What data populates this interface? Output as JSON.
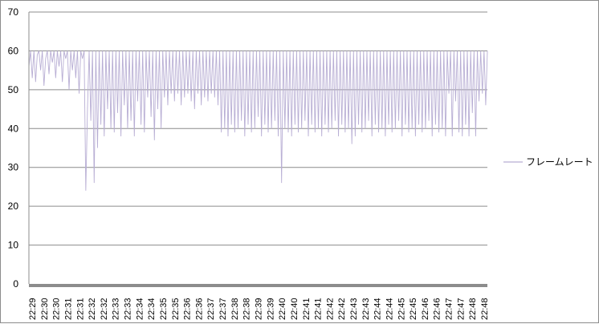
{
  "chart_data": {
    "type": "line",
    "title": "",
    "xlabel": "",
    "ylabel": "",
    "ylim": [
      0,
      70
    ],
    "yticks": [
      0,
      10,
      20,
      30,
      40,
      50,
      60,
      70
    ],
    "grid": "horizontal",
    "legend_position": "right",
    "series_color": "#b8aed4",
    "x_tick_labels": [
      "22:29",
      "22:30",
      "22:30",
      "22:31",
      "22:31",
      "22:32",
      "22:32",
      "22:33",
      "22:33",
      "22:34",
      "22:34",
      "22:35",
      "22:35",
      "22:36",
      "22:36",
      "22:37",
      "22:37",
      "22:38",
      "22:38",
      "22:39",
      "22:39",
      "22:40",
      "22:40",
      "22:41",
      "22:41",
      "22:42",
      "22:42",
      "22:43",
      "22:43",
      "22:44",
      "22:44",
      "22:45",
      "22:45",
      "22:46",
      "22:46",
      "22:47",
      "22:47",
      "22:48",
      "22:48"
    ],
    "series": [
      {
        "name": "フレームレート",
        "values": [
          56,
          60,
          53,
          60,
          52,
          59,
          60,
          55,
          60,
          51,
          58,
          60,
          54,
          60,
          57,
          60,
          53,
          60,
          56,
          60,
          52,
          60,
          58,
          60,
          50,
          60,
          55,
          60,
          53,
          60,
          49,
          60,
          58,
          60,
          24,
          45,
          60,
          42,
          60,
          26,
          60,
          35,
          60,
          41,
          60,
          38,
          60,
          45,
          60,
          40,
          60,
          39,
          60,
          44,
          60,
          38,
          60,
          46,
          60,
          40,
          60,
          42,
          60,
          38,
          60,
          47,
          60,
          41,
          60,
          39,
          60,
          48,
          60,
          43,
          60,
          37,
          60,
          45,
          60,
          40,
          60,
          48,
          60,
          46,
          60,
          49,
          60,
          47,
          60,
          49,
          60,
          46,
          60,
          48,
          60,
          49,
          60,
          47,
          60,
          45,
          60,
          49,
          60,
          46,
          60,
          48,
          60,
          47,
          60,
          49,
          60,
          48,
          60,
          46,
          60,
          39,
          60,
          40,
          60,
          38,
          60,
          41,
          60,
          39,
          60,
          40,
          60,
          42,
          60,
          38,
          60,
          41,
          60,
          39,
          60,
          40,
          60,
          43,
          60,
          38,
          60,
          41,
          60,
          39,
          60,
          40,
          60,
          42,
          60,
          38,
          60,
          26,
          60,
          40,
          60,
          39,
          60,
          38,
          60,
          41,
          60,
          39,
          60,
          40,
          60,
          42,
          60,
          38,
          60,
          41,
          60,
          39,
          60,
          40,
          60,
          38,
          60,
          41,
          60,
          39,
          60,
          40,
          60,
          42,
          60,
          38,
          60,
          41,
          60,
          39,
          60,
          40,
          60,
          36,
          60,
          38,
          60,
          41,
          60,
          39,
          60,
          40,
          60,
          42,
          60,
          38,
          60,
          41,
          60,
          39,
          60,
          40,
          60,
          38,
          60,
          41,
          60,
          39,
          60,
          40,
          60,
          42,
          60,
          38,
          60,
          41,
          60,
          39,
          60,
          40,
          60,
          38,
          60,
          41,
          60,
          39,
          60,
          40,
          60,
          42,
          60,
          38,
          60,
          41,
          60,
          39,
          60,
          40,
          60,
          38,
          60,
          49,
          60,
          38,
          60,
          47,
          60,
          39,
          60,
          38,
          60,
          41,
          60,
          38,
          60,
          44,
          60,
          38,
          60,
          47,
          60,
          49,
          60,
          46,
          60
        ]
      }
    ]
  }
}
